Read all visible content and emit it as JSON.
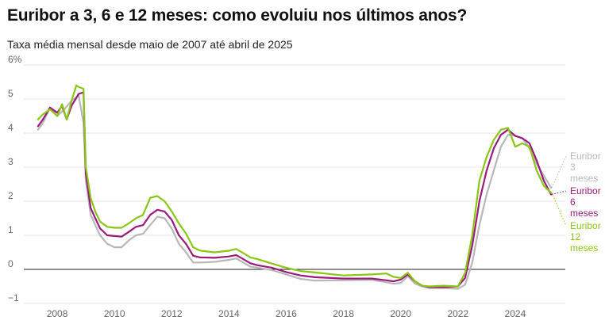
{
  "chart_data": {
    "type": "line",
    "title": "Euribor a 3, 6 e 12 meses: como evoluiu nos últimos anos?",
    "subtitle": "Taxa média mensal desde maio de 2007 até abril de 2025",
    "xlabel": "",
    "ylabel": "",
    "xlim": [
      2007.0,
      2025.75
    ],
    "ylim": [
      -1,
      6
    ],
    "grid": true,
    "y_ticks": [
      -1,
      0,
      1,
      2,
      3,
      4,
      5,
      6
    ],
    "y_tick_labels": [
      "−1",
      "0",
      "1",
      "2",
      "3",
      "4",
      "5",
      "6%"
    ],
    "x_ticks": [
      2008,
      2010,
      2012,
      2014,
      2016,
      2018,
      2020,
      2022,
      2024
    ],
    "x_tick_labels": [
      "2008",
      "2010",
      "2012",
      "2014",
      "2016",
      "2018",
      "2020",
      "2022",
      "2024"
    ],
    "series": [
      {
        "name": "Euribor 3 meses",
        "label_lines": [
          "Euribor",
          "3",
          "meses"
        ],
        "color": "#b8b8b8",
        "x": [
          2007.33,
          2007.5,
          2007.75,
          2008.0,
          2008.25,
          2008.5,
          2008.75,
          2008.92,
          2009.0,
          2009.17,
          2009.33,
          2009.5,
          2009.75,
          2010.0,
          2010.25,
          2010.5,
          2010.75,
          2011.0,
          2011.25,
          2011.5,
          2011.75,
          2012.0,
          2012.25,
          2012.5,
          2012.75,
          2013.0,
          2013.5,
          2014.0,
          2014.25,
          2014.5,
          2014.75,
          2015.0,
          2015.5,
          2016.0,
          2016.5,
          2017.0,
          2018.0,
          2019.0,
          2019.5,
          2019.75,
          2020.0,
          2020.25,
          2020.5,
          2020.75,
          2021.0,
          2021.5,
          2022.0,
          2022.25,
          2022.5,
          2022.75,
          2023.0,
          2023.25,
          2023.5,
          2023.75,
          2024.0,
          2024.25,
          2024.5,
          2024.75,
          2025.0,
          2025.25
        ],
        "values": [
          4.1,
          4.3,
          4.75,
          4.5,
          4.7,
          4.95,
          5.1,
          4.3,
          2.6,
          1.6,
          1.3,
          1.0,
          0.75,
          0.65,
          0.65,
          0.85,
          1.0,
          1.05,
          1.3,
          1.55,
          1.5,
          1.2,
          0.75,
          0.5,
          0.2,
          0.2,
          0.22,
          0.28,
          0.32,
          0.2,
          0.08,
          0.05,
          -0.02,
          -0.15,
          -0.28,
          -0.33,
          -0.32,
          -0.31,
          -0.38,
          -0.42,
          -0.4,
          -0.2,
          -0.42,
          -0.5,
          -0.55,
          -0.55,
          -0.57,
          -0.45,
          0.2,
          1.3,
          2.2,
          2.9,
          3.6,
          3.95,
          3.92,
          3.85,
          3.55,
          3.1,
          2.75,
          2.4
        ]
      },
      {
        "name": "Euribor 6 meses",
        "label_lines": [
          "Euribor",
          "6",
          "meses"
        ],
        "color": "#9b1b7c",
        "x": [
          2007.33,
          2007.5,
          2007.75,
          2008.0,
          2008.17,
          2008.33,
          2008.5,
          2008.75,
          2008.92,
          2009.0,
          2009.17,
          2009.33,
          2009.5,
          2009.75,
          2010.0,
          2010.25,
          2010.5,
          2010.75,
          2011.0,
          2011.25,
          2011.5,
          2011.75,
          2012.0,
          2012.25,
          2012.5,
          2012.75,
          2013.0,
          2013.5,
          2014.0,
          2014.25,
          2014.5,
          2014.75,
          2015.0,
          2015.5,
          2016.0,
          2016.5,
          2017.0,
          2018.0,
          2019.0,
          2019.5,
          2019.75,
          2020.0,
          2020.25,
          2020.5,
          2020.75,
          2021.0,
          2021.5,
          2022.0,
          2022.25,
          2022.5,
          2022.75,
          2023.0,
          2023.25,
          2023.5,
          2023.75,
          2024.0,
          2024.25,
          2024.5,
          2024.75,
          2025.0,
          2025.25
        ],
        "values": [
          4.2,
          4.4,
          4.75,
          4.6,
          4.8,
          4.4,
          4.8,
          5.15,
          5.2,
          2.8,
          1.8,
          1.5,
          1.2,
          1.0,
          0.98,
          0.96,
          1.1,
          1.25,
          1.3,
          1.6,
          1.75,
          1.7,
          1.45,
          1.0,
          0.75,
          0.4,
          0.35,
          0.34,
          0.38,
          0.42,
          0.3,
          0.18,
          0.12,
          0.05,
          -0.08,
          -0.18,
          -0.23,
          -0.27,
          -0.27,
          -0.32,
          -0.35,
          -0.3,
          -0.15,
          -0.35,
          -0.48,
          -0.52,
          -0.52,
          -0.5,
          -0.25,
          0.7,
          2.0,
          2.9,
          3.55,
          3.95,
          4.1,
          3.92,
          3.85,
          3.7,
          3.2,
          2.6,
          2.2
        ]
      },
      {
        "name": "Euribor 12 meses",
        "label_lines": [
          "Euribor",
          "12",
          "meses"
        ],
        "color": "#8cc615",
        "x": [
          2007.33,
          2007.5,
          2007.75,
          2008.0,
          2008.17,
          2008.33,
          2008.5,
          2008.67,
          2008.75,
          2008.92,
          2009.0,
          2009.17,
          2009.33,
          2009.5,
          2009.75,
          2010.0,
          2010.25,
          2010.5,
          2010.75,
          2011.0,
          2011.25,
          2011.5,
          2011.75,
          2012.0,
          2012.25,
          2012.5,
          2012.75,
          2013.0,
          2013.5,
          2014.0,
          2014.25,
          2014.5,
          2014.75,
          2015.0,
          2015.5,
          2016.0,
          2016.5,
          2017.0,
          2018.0,
          2019.0,
          2019.5,
          2019.75,
          2020.0,
          2020.25,
          2020.5,
          2020.75,
          2021.0,
          2021.5,
          2022.0,
          2022.25,
          2022.5,
          2022.75,
          2023.0,
          2023.25,
          2023.5,
          2023.75,
          2024.0,
          2024.25,
          2024.5,
          2024.75,
          2025.0,
          2025.25
        ],
        "values": [
          4.4,
          4.55,
          4.7,
          4.5,
          4.85,
          4.4,
          4.95,
          5.4,
          5.35,
          5.3,
          3.0,
          2.1,
          1.7,
          1.4,
          1.25,
          1.22,
          1.22,
          1.35,
          1.5,
          1.6,
          2.1,
          2.15,
          2.0,
          1.7,
          1.35,
          1.05,
          0.65,
          0.55,
          0.5,
          0.55,
          0.6,
          0.48,
          0.35,
          0.3,
          0.17,
          0.05,
          -0.05,
          -0.09,
          -0.18,
          -0.15,
          -0.12,
          -0.22,
          -0.25,
          -0.1,
          -0.35,
          -0.48,
          -0.5,
          -0.48,
          -0.5,
          -0.1,
          1.0,
          2.6,
          3.3,
          3.8,
          4.1,
          4.15,
          3.6,
          3.7,
          3.6,
          2.9,
          2.45,
          2.25
        ]
      }
    ]
  }
}
